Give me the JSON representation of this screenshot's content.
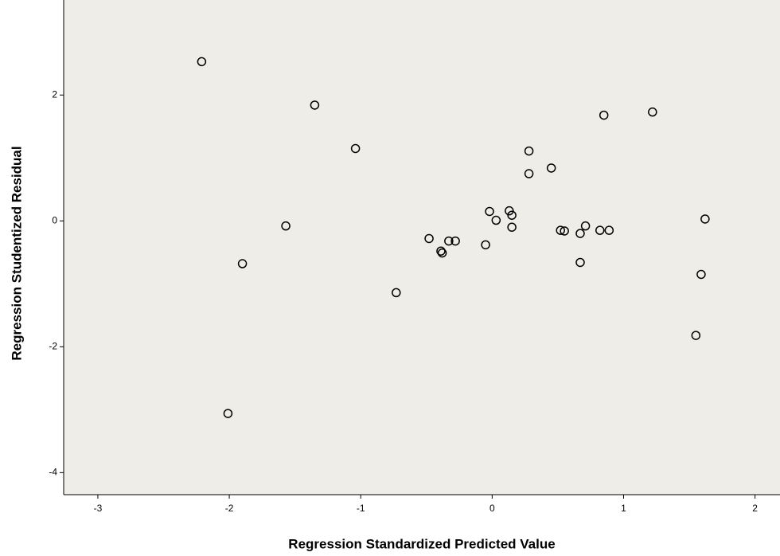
{
  "chart_data": {
    "type": "scatter",
    "xlabel": "Regression Standardized Predicted Value",
    "ylabel": "Regression Studentized Residual",
    "x": [
      -2.21,
      -1.35,
      -1.04,
      -1.57,
      -1.9,
      -2.01,
      -0.73,
      -0.48,
      -0.39,
      -0.38,
      -0.33,
      -0.28,
      -0.05,
      -0.02,
      0.03,
      0.13,
      0.15,
      0.15,
      0.28,
      0.28,
      0.45,
      0.52,
      0.55,
      0.67,
      0.67,
      0.71,
      0.82,
      0.89,
      0.85,
      1.22,
      1.62,
      1.59,
      1.55
    ],
    "y": [
      2.53,
      1.84,
      1.15,
      -0.08,
      -0.68,
      -3.06,
      -1.14,
      -0.28,
      -0.48,
      -0.51,
      -0.32,
      -0.32,
      -0.38,
      0.15,
      0.01,
      0.16,
      0.09,
      -0.1,
      1.11,
      0.75,
      0.84,
      -0.15,
      -0.16,
      -0.2,
      -0.66,
      -0.08,
      -0.15,
      -0.15,
      1.68,
      1.73,
      0.03,
      -0.85,
      -1.82
    ],
    "color": "#000000",
    "plot_background": "#efede7",
    "xlim": [
      -3.26,
      2.19
    ],
    "xticks": [
      -3,
      -2,
      -1,
      0,
      1,
      2
    ],
    "ylim": [
      -4.35,
      3.51
    ],
    "yticks": [
      -4,
      -2,
      0,
      2
    ],
    "grid": false
  }
}
